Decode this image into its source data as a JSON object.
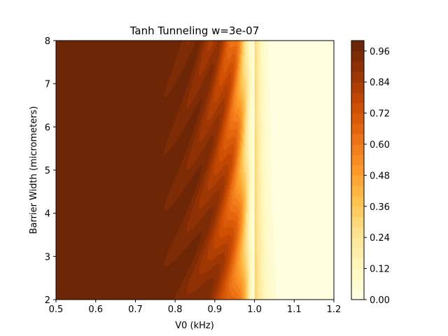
{
  "chart_data": {
    "type": "heatmap",
    "title": "Tanh Tunneling w=3e-07",
    "xlabel": "V0 (kHz)",
    "ylabel": "Barrier Width (micrometers)",
    "xlim": [
      0.5,
      1.2
    ],
    "ylim": [
      2,
      8
    ],
    "x_ticks": [
      "0.5",
      "0.6",
      "0.7",
      "0.8",
      "0.9",
      "1.0",
      "1.1",
      "1.2"
    ],
    "y_ticks": [
      "2",
      "3",
      "4",
      "5",
      "6",
      "7",
      "8"
    ],
    "colorbar": {
      "colormap": "YlOrBr",
      "range": [
        0,
        1
      ],
      "levels": 25,
      "ticks": [
        "0.00",
        "0.12",
        "0.24",
        "0.36",
        "0.48",
        "0.60",
        "0.72",
        "0.84",
        "0.96"
      ]
    },
    "colors": {
      "low": "#ffffe5",
      "mid": "#fe9929",
      "high": "#662506"
    },
    "grid": false,
    "description_values": {
      "transmission_high_region": "V0 below ~0.95 kHz",
      "transmission_low_region": "V0 above ~1.0 kHz",
      "resonance_stripes": "diagonal oscillation bands between 0.7 and 1.0 kHz"
    }
  }
}
